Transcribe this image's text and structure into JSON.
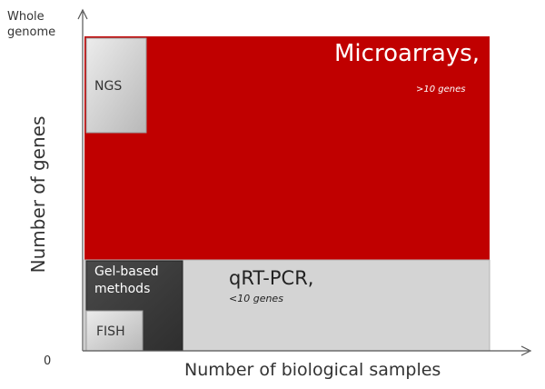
{
  "axes": {
    "y_top_label": "Whole genome",
    "origin_label": "0",
    "y_label": "Number of genes",
    "x_label": "Number of biological samples"
  },
  "regions": {
    "microarrays": {
      "title": "Microarrays,",
      "subtitle": ">10 genes",
      "color": "#c00000"
    },
    "qrtpcr": {
      "title": "qRT-PCR,",
      "subtitle": "<10 genes",
      "color": "#d4d4d4"
    },
    "ngs": {
      "label": "NGS",
      "color": "#d9d9d9"
    },
    "gel": {
      "label": "Gel-based methods",
      "color": "#3f3f3f"
    },
    "fish": {
      "label": "FISH",
      "color": "#d9d9d9"
    }
  }
}
